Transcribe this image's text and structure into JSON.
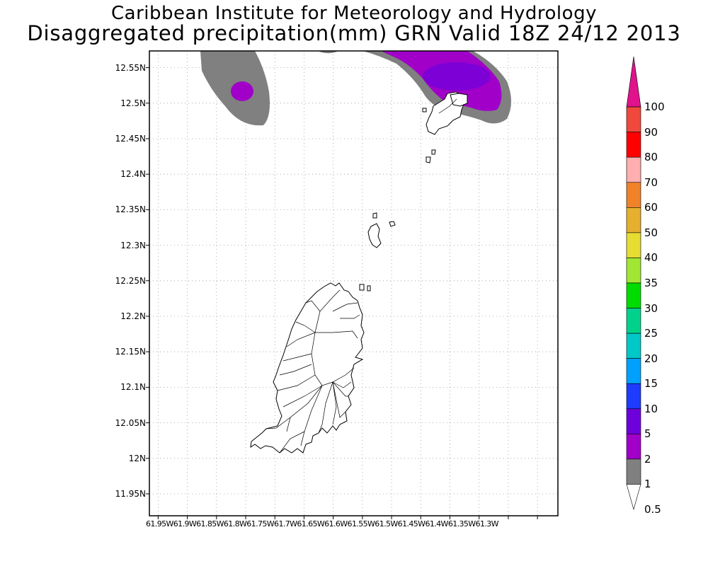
{
  "header": {
    "title": "Caribbean Institute for Meteorology and Hydrology",
    "subtitle": "Disaggregated precipitation(mm) GRN Valid 18Z 24/12 2013"
  },
  "map": {
    "lat_ticks": [
      {
        "value": 12.55,
        "label": "12.55N"
      },
      {
        "value": 12.5,
        "label": "12.5N"
      },
      {
        "value": 12.45,
        "label": "12.45N"
      },
      {
        "value": 12.4,
        "label": "12.4N"
      },
      {
        "value": 12.35,
        "label": "12.35N"
      },
      {
        "value": 12.3,
        "label": "12.3N"
      },
      {
        "value": 12.25,
        "label": "12.25N"
      },
      {
        "value": 12.2,
        "label": "12.2N"
      },
      {
        "value": 12.15,
        "label": "12.15N"
      },
      {
        "value": 12.1,
        "label": "12.1N"
      },
      {
        "value": 12.05,
        "label": "12.05N"
      },
      {
        "value": 12.0,
        "label": "12N"
      },
      {
        "value": 11.95,
        "label": "11.95N"
      }
    ],
    "lon_tick_values": [
      -61.95,
      -61.9,
      -61.85,
      -61.8,
      -61.75,
      -61.7,
      -61.65,
      -61.6,
      -61.55,
      -61.5,
      -61.45,
      -61.4,
      -61.35,
      -61.3
    ],
    "lon_labels_text": "61.95W61.9W61.85W61.8W61.75W61.7W61.65W61.6W61.55W61.5W61.45W61.4W61.35W61.3W",
    "grid": true
  },
  "legend": {
    "items": [
      {
        "label": "100",
        "color": "#e0138c"
      },
      {
        "label": "90",
        "color": "#f0483c"
      },
      {
        "label": "80",
        "color": "#ff0000"
      },
      {
        "label": "70",
        "color": "#ffafaf"
      },
      {
        "label": "60",
        "color": "#f08228"
      },
      {
        "label": "50",
        "color": "#e6af2d"
      },
      {
        "label": "40",
        "color": "#e6dc32"
      },
      {
        "label": "35",
        "color": "#a0e632"
      },
      {
        "label": "30",
        "color": "#00dc00"
      },
      {
        "label": "25",
        "color": "#00d28c"
      },
      {
        "label": "20",
        "color": "#00c8c8"
      },
      {
        "label": "15",
        "color": "#00a0ff"
      },
      {
        "label": "10",
        "color": "#1e3cff"
      },
      {
        "label": "5",
        "color": "#6e00dc"
      },
      {
        "label": "2",
        "color": "#a000c8"
      },
      {
        "label": "1",
        "color": "#808080"
      },
      {
        "label": "0.5",
        "color": "#ffffff"
      }
    ]
  }
}
